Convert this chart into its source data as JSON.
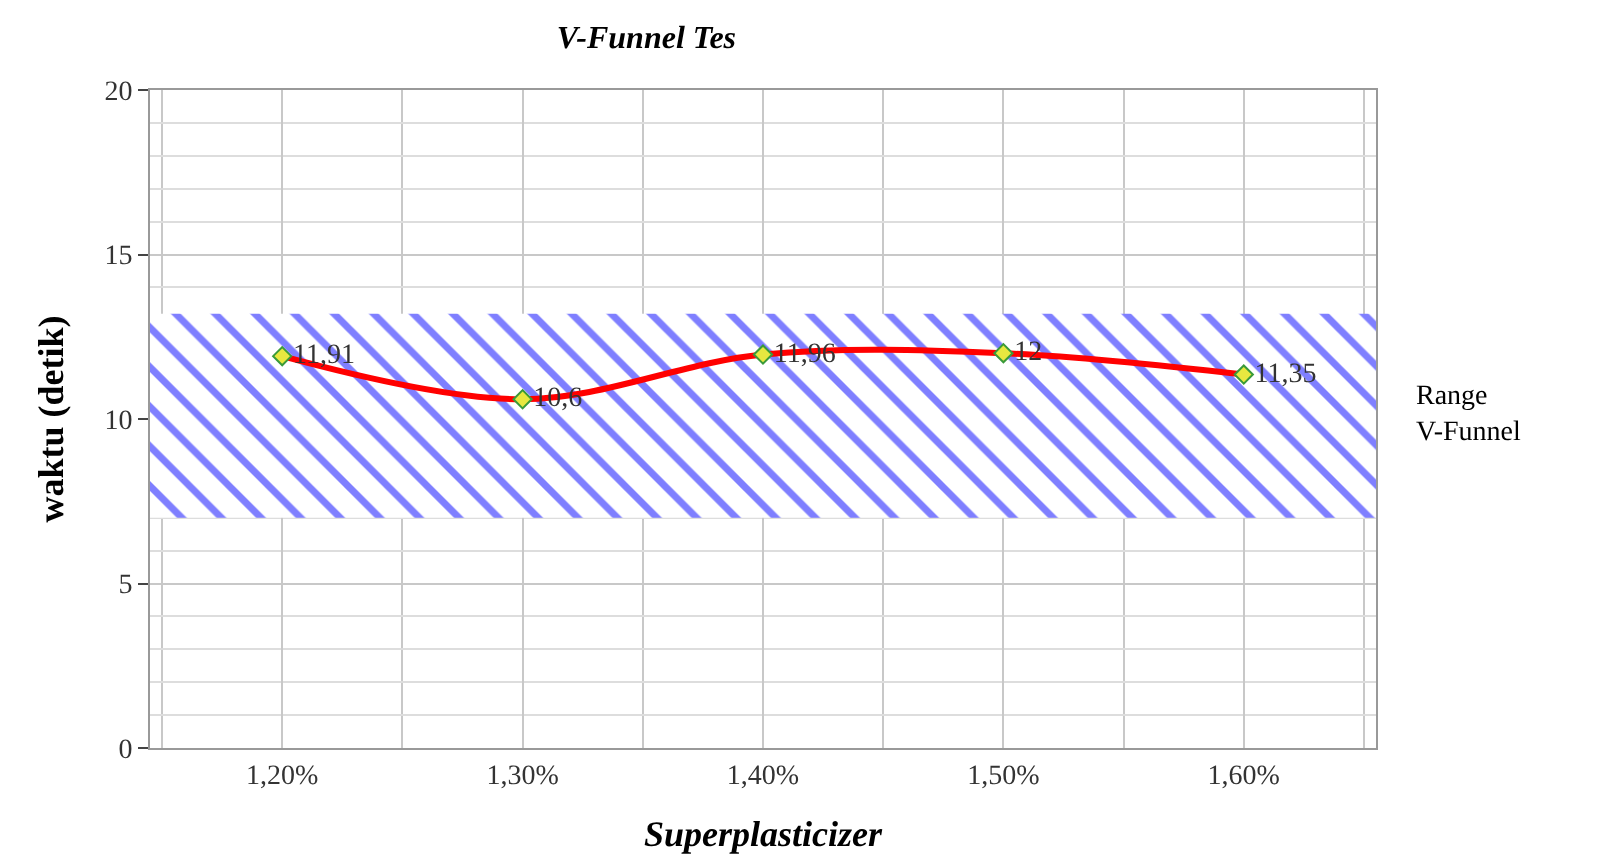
{
  "chart_data": {
    "type": "line",
    "title": "V-Funnel Tes",
    "xlabel": "Superplasticizer",
    "ylabel": "waktu (detik)",
    "categories": [
      "1,20%",
      "1,30%",
      "1,40%",
      "1,50%",
      "1,60%"
    ],
    "series": [
      {
        "color": "#ff0000",
        "values": [
          11.91,
          10.6,
          11.96,
          12,
          11.35
        ],
        "value_labels": [
          "11,91",
          "10,6",
          "11,96",
          "12",
          "11,35"
        ]
      }
    ],
    "ylim": [
      0,
      20
    ],
    "yticks": [
      0,
      5,
      10,
      15,
      20
    ],
    "grid": true,
    "marker": "diamond",
    "line_style": "solid",
    "bands": [
      {
        "axis": "y",
        "from": 7,
        "to": 13.2,
        "label": "Range V-Funnel",
        "color": "#0000ff"
      }
    ]
  }
}
